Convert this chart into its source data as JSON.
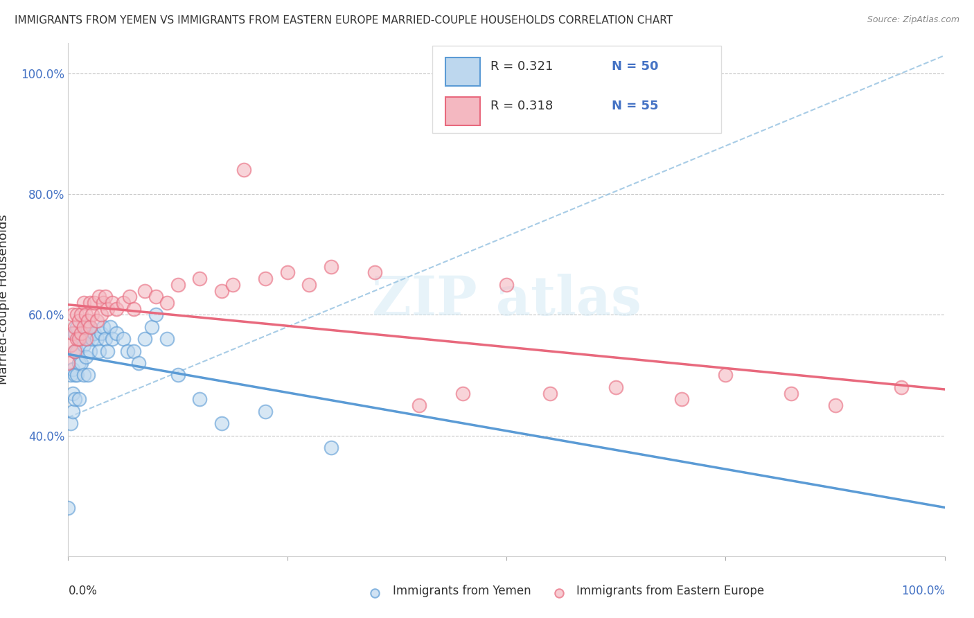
{
  "title": "IMMIGRANTS FROM YEMEN VS IMMIGRANTS FROM EASTERN EUROPE MARRIED-COUPLE HOUSEHOLDS CORRELATION CHART",
  "source": "Source: ZipAtlas.com",
  "ylabel": "Married-couple Households",
  "color_yemen": "#5b9bd5",
  "color_eastern": "#e8697d",
  "color_yemen_fill": "#bdd7ee",
  "color_eastern_fill": "#f4b8c1",
  "color_dashed": "#92c0e0",
  "legend_r1": "R = 0.321",
  "legend_n1": "N = 50",
  "legend_r2": "R = 0.318",
  "legend_n2": "N = 55",
  "yemen_x": [
    0.0,
    0.001,
    0.001,
    0.002,
    0.002,
    0.002,
    0.003,
    0.003,
    0.003,
    0.003,
    0.004,
    0.004,
    0.004,
    0.005,
    0.005,
    0.005,
    0.006,
    0.006,
    0.007,
    0.007,
    0.008,
    0.008,
    0.009,
    0.009,
    0.01,
    0.01,
    0.011,
    0.012,
    0.013,
    0.014,
    0.015,
    0.016,
    0.017,
    0.018,
    0.019,
    0.02,
    0.022,
    0.025,
    0.027,
    0.03,
    0.032,
    0.035,
    0.038,
    0.04,
    0.045,
    0.05,
    0.06,
    0.07,
    0.09,
    0.12
  ],
  "yemen_y": [
    0.28,
    0.42,
    0.5,
    0.44,
    0.47,
    0.51,
    0.46,
    0.5,
    0.54,
    0.57,
    0.5,
    0.54,
    0.58,
    0.46,
    0.52,
    0.56,
    0.52,
    0.56,
    0.5,
    0.55,
    0.53,
    0.58,
    0.5,
    0.56,
    0.54,
    0.58,
    0.56,
    0.57,
    0.56,
    0.54,
    0.57,
    0.58,
    0.56,
    0.54,
    0.58,
    0.56,
    0.57,
    0.56,
    0.54,
    0.54,
    0.52,
    0.56,
    0.58,
    0.6,
    0.56,
    0.5,
    0.46,
    0.42,
    0.44,
    0.38
  ],
  "eastern_x": [
    0.0,
    0.001,
    0.002,
    0.002,
    0.003,
    0.003,
    0.004,
    0.004,
    0.005,
    0.005,
    0.006,
    0.006,
    0.007,
    0.007,
    0.008,
    0.008,
    0.009,
    0.01,
    0.01,
    0.011,
    0.012,
    0.013,
    0.014,
    0.015,
    0.016,
    0.017,
    0.018,
    0.02,
    0.022,
    0.025,
    0.028,
    0.03,
    0.035,
    0.04,
    0.045,
    0.05,
    0.06,
    0.07,
    0.075,
    0.08,
    0.09,
    0.1,
    0.11,
    0.12,
    0.14,
    0.16,
    0.18,
    0.2,
    0.22,
    0.25,
    0.28,
    0.3,
    0.33,
    0.35,
    0.38
  ],
  "eastern_y": [
    0.52,
    0.55,
    0.57,
    0.6,
    0.54,
    0.58,
    0.56,
    0.6,
    0.56,
    0.59,
    0.57,
    0.6,
    0.58,
    0.62,
    0.56,
    0.6,
    0.59,
    0.58,
    0.62,
    0.6,
    0.62,
    0.59,
    0.63,
    0.6,
    0.62,
    0.63,
    0.61,
    0.62,
    0.61,
    0.62,
    0.63,
    0.61,
    0.64,
    0.63,
    0.62,
    0.65,
    0.66,
    0.64,
    0.65,
    0.84,
    0.66,
    0.67,
    0.65,
    0.68,
    0.67,
    0.45,
    0.47,
    0.65,
    0.47,
    0.48,
    0.46,
    0.5,
    0.47,
    0.45,
    0.48
  ],
  "xlim": [
    0.0,
    0.4
  ],
  "ylim": [
    0.2,
    1.05
  ],
  "yticks": [
    0.4,
    0.6,
    0.8,
    1.0
  ],
  "ytick_labels": [
    "40.0%",
    "60.0%",
    "80.0%",
    "100.0%"
  ],
  "xtick_positions": [
    0.0,
    0.1,
    0.2,
    0.3,
    0.4
  ],
  "bottom_left_label": "0.0%",
  "bottom_right_label": "100.0%",
  "bottom_label1": "Immigrants from Yemen",
  "bottom_label2": "Immigrants from Eastern Europe"
}
